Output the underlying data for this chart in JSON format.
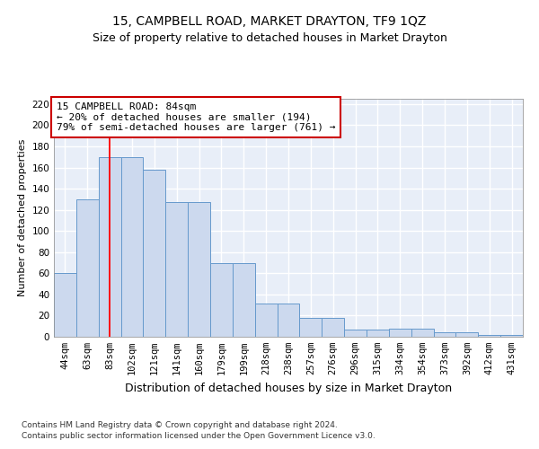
{
  "title": "15, CAMPBELL ROAD, MARKET DRAYTON, TF9 1QZ",
  "subtitle": "Size of property relative to detached houses in Market Drayton",
  "xlabel": "Distribution of detached houses by size in Market Drayton",
  "ylabel": "Number of detached properties",
  "footer_line1": "Contains HM Land Registry data © Crown copyright and database right 2024.",
  "footer_line2": "Contains public sector information licensed under the Open Government Licence v3.0.",
  "bar_labels": [
    "44sqm",
    "63sqm",
    "83sqm",
    "102sqm",
    "121sqm",
    "141sqm",
    "160sqm",
    "179sqm",
    "199sqm",
    "218sqm",
    "238sqm",
    "257sqm",
    "276sqm",
    "296sqm",
    "315sqm",
    "334sqm",
    "354sqm",
    "373sqm",
    "392sqm",
    "412sqm",
    "431sqm"
  ],
  "bar_values": [
    60,
    130,
    170,
    170,
    158,
    127,
    127,
    70,
    70,
    31,
    31,
    18,
    18,
    7,
    7,
    8,
    8,
    4,
    4,
    2,
    2
  ],
  "bar_color": "#ccd9ee",
  "bar_edge_color": "#6699cc",
  "red_line_x": 2,
  "annotation_title": "15 CAMPBELL ROAD: 84sqm",
  "annotation_line1": "← 20% of detached houses are smaller (194)",
  "annotation_line2": "79% of semi-detached houses are larger (761) →",
  "annotation_box_facecolor": "#ffffff",
  "annotation_border_color": "#cc0000",
  "ylim": [
    0,
    225
  ],
  "yticks": [
    0,
    20,
    40,
    60,
    80,
    100,
    120,
    140,
    160,
    180,
    200,
    220
  ],
  "background_color": "#e8eef8",
  "grid_color": "#ffffff",
  "title_fontsize": 10,
  "subtitle_fontsize": 9,
  "ylabel_fontsize": 8,
  "xlabel_fontsize": 9,
  "tick_fontsize": 7.5,
  "annotation_fontsize": 8,
  "footer_fontsize": 6.5
}
